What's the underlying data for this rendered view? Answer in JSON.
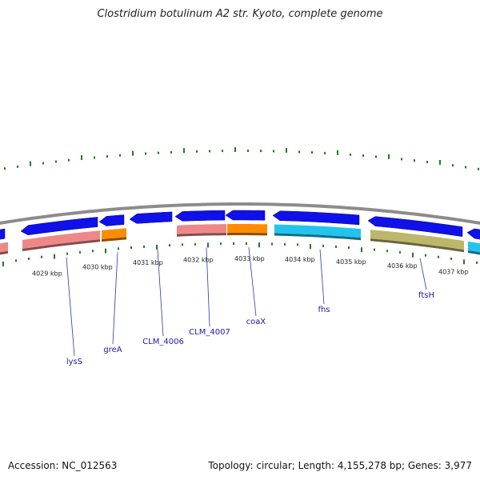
{
  "header": {
    "title": "Clostridium botulinum A2 str. Kyoto, complete genome"
  },
  "footer": {
    "accession": "Accession: NC_012563",
    "summary": "Topology: circular; Length: 4,155,278 bp; Genes: 3,977"
  },
  "colors": {
    "backbone": "#8c8c8c",
    "tick": "#1f7a1f",
    "forward_gene": "#1010e8",
    "reverse_gene_salmon": "#ee8888",
    "reverse_gene_orange": "#ff8c00",
    "reverse_gene_cyan": "#22c4ee",
    "reverse_gene_olive": "#bdb76b",
    "label": "#1a1aa8"
  },
  "scale": {
    "unit": "kbp",
    "labels": [
      "4029 kbp",
      "4030 kbp",
      "4031 kbp",
      "4032 kbp",
      "4033 kbp",
      "4034 kbp",
      "4035 kbp",
      "4036 kbp",
      "4037 kbp"
    ]
  },
  "gene_labels": [
    "lysS",
    "greA",
    "CLM_4006",
    "CLM_4007",
    "coaX",
    "fhs",
    "ftsH"
  ]
}
